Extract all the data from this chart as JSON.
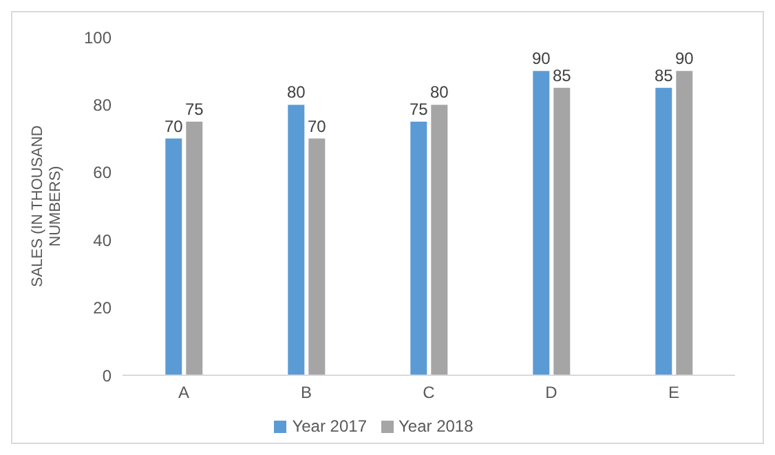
{
  "chart_data": {
    "type": "bar",
    "ylabel": "SALES (IN THOUSAND NUMBERS)",
    "categories": [
      "A",
      "B",
      "C",
      "D",
      "E"
    ],
    "series": [
      {
        "name": "Year 2017",
        "color": "#5b9bd5",
        "values": [
          70,
          80,
          75,
          90,
          85
        ]
      },
      {
        "name": "Year 2018",
        "color": "#a5a5a5",
        "values": [
          75,
          70,
          80,
          85,
          90
        ]
      }
    ],
    "ylim": [
      0,
      100
    ],
    "yticks": [
      0,
      20,
      40,
      60,
      80,
      100
    ],
    "data_labels": true,
    "legend": "bottom"
  }
}
